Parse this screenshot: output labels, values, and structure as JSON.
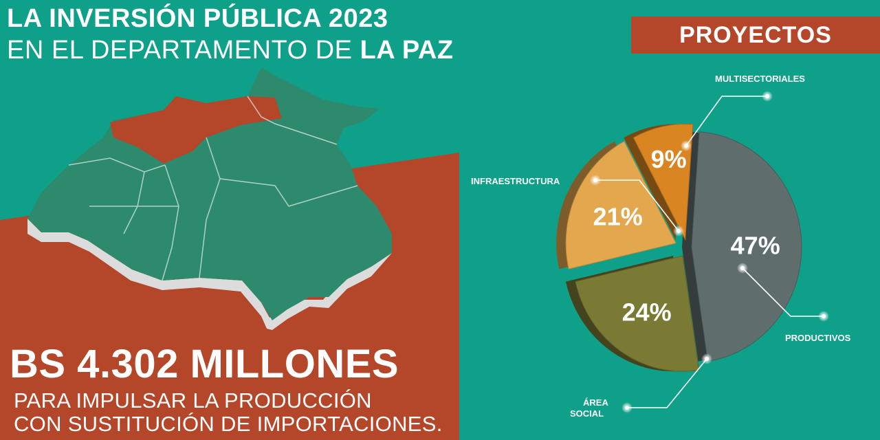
{
  "title": {
    "line1": "LA INVERSIÓN PÚBLICA 2023",
    "line2_prefix": "EN EL DEPARTAMENTO DE ",
    "line2_bold": "LA PAZ"
  },
  "amount": "BS 4.302 MILLONES",
  "subtitle": {
    "line1": "PARA IMPULSAR LA PRODUCCIÓN",
    "line2": "CON SUSTITUCIÓN DE IMPORTACIONES."
  },
  "section_label": "PROYECTOS",
  "colors": {
    "teal_bg": "#0fa08a",
    "orange_bg": "#b4462a",
    "map_green": "#2d8a6c",
    "map_highlight": "#b4462a"
  },
  "chart_data": {
    "type": "pie",
    "slices": [
      {
        "name": "PRODUCTIVOS",
        "value": 47,
        "label": "47%",
        "color": "#5f6e6d"
      },
      {
        "name": "ÁREA SOCIAL",
        "value": 24,
        "label": "24%",
        "color": "#7a7a34"
      },
      {
        "name": "INFRAESTRUCTURA",
        "value": 21,
        "label": "21%",
        "color": "#e3a84e"
      },
      {
        "name": "MULTISECTORIALES",
        "value": 9,
        "label": "9%",
        "color": "#d98622"
      }
    ],
    "legend_labels": {
      "productivos": "PRODUCTIVOS",
      "area_social_1": "ÁREA",
      "area_social_2": "SOCIAL",
      "infraestructura": "INFRAESTRUCTURA",
      "multisectoriales": "MULTISECTORIALES"
    }
  }
}
